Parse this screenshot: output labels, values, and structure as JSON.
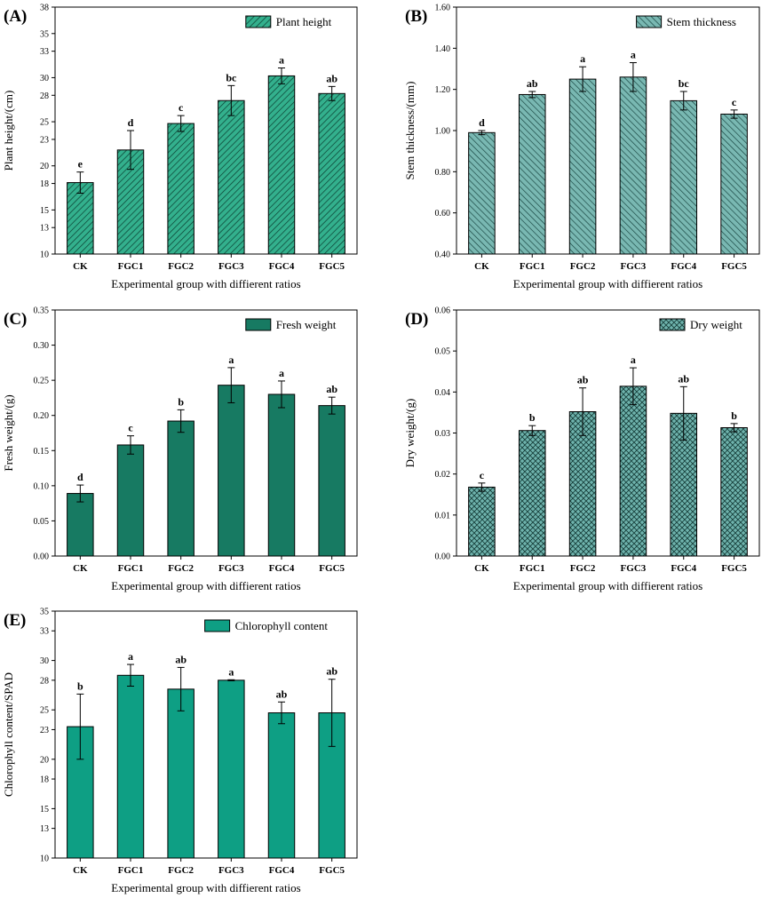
{
  "chart_data": [
    {
      "panel": "(A)",
      "type": "bar",
      "categories": [
        "CK",
        "FGC1",
        "FGC2",
        "FGC3",
        "FGC4",
        "FGC5"
      ],
      "values": [
        18.1,
        21.8,
        24.8,
        27.4,
        30.2,
        28.2
      ],
      "errors": [
        1.2,
        2.2,
        0.9,
        1.7,
        0.9,
        0.8
      ],
      "significance": [
        "e",
        "d",
        "c",
        "bc",
        "a",
        "ab"
      ],
      "ylim": [
        10,
        38
      ],
      "yticks": [
        "10",
        "13",
        "15",
        "18",
        "20",
        "23",
        "25",
        "28",
        "30",
        "33",
        "35",
        "38"
      ],
      "ylabel": "Plant height/(cm)",
      "xlabel": "Experimental group with diffierent ratios",
      "legend": "Plant height",
      "legend_position": "top-right",
      "color": "#33b08d",
      "pattern": "diagonal-right"
    },
    {
      "panel": "(B)",
      "type": "bar",
      "categories": [
        "CK",
        "FGC1",
        "FGC2",
        "FGC3",
        "FGC4",
        "FGC5"
      ],
      "values": [
        0.99,
        1.175,
        1.25,
        1.26,
        1.145,
        1.08
      ],
      "errors": [
        0.01,
        0.015,
        0.06,
        0.07,
        0.045,
        0.02
      ],
      "significance": [
        "d",
        "ab",
        "a",
        "a",
        "bc",
        "c"
      ],
      "ylim": [
        0.4,
        1.6
      ],
      "yticks": [
        "0.40",
        "0.60",
        "0.80",
        "1.00",
        "1.20",
        "1.40",
        "1.60"
      ],
      "ylabel": "Stem thickness/(mm)",
      "xlabel": "Experimental group with diffierent ratios",
      "legend": "Stem thickness",
      "legend_position": "top-right",
      "color": "#79b8b2",
      "pattern": "diagonal-left"
    },
    {
      "panel": "(C)",
      "type": "bar",
      "categories": [
        "CK",
        "FGC1",
        "FGC2",
        "FGC3",
        "FGC4",
        "FGC5"
      ],
      "values": [
        0.089,
        0.158,
        0.192,
        0.243,
        0.23,
        0.214
      ],
      "errors": [
        0.012,
        0.013,
        0.016,
        0.025,
        0.019,
        0.012
      ],
      "significance": [
        "d",
        "c",
        "b",
        "a",
        "a",
        "ab"
      ],
      "ylim": [
        0,
        0.35
      ],
      "yticks": [
        "0.00",
        "0.05",
        "0.10",
        "0.15",
        "0.20",
        "0.25",
        "0.30",
        "0.35"
      ],
      "ylabel": "Fresh weight/(g)",
      "xlabel": "Experimental group with diffierent ratios",
      "legend": "Fresh weight",
      "legend_position": "top-right",
      "color": "#177a62",
      "pattern": "solid"
    },
    {
      "panel": "(D)",
      "type": "bar",
      "categories": [
        "CK",
        "FGC1",
        "FGC2",
        "FGC3",
        "FGC4",
        "FGC5"
      ],
      "values": [
        0.0168,
        0.0306,
        0.0352,
        0.0414,
        0.0348,
        0.0313
      ],
      "errors": [
        0.001,
        0.0012,
        0.0058,
        0.0045,
        0.0065,
        0.001
      ],
      "significance": [
        "c",
        "b",
        "ab",
        "a",
        "ab",
        "b"
      ],
      "ylim": [
        0,
        0.06
      ],
      "yticks": [
        "0.00",
        "0.01",
        "0.02",
        "0.03",
        "0.04",
        "0.05",
        "0.06"
      ],
      "ylabel": "Dry weight/(g)",
      "xlabel": "Experimental group with diffierent ratios",
      "legend": "Dry weight",
      "legend_position": "top-right",
      "color": "#6fb3ad",
      "pattern": "crosshatch"
    },
    {
      "panel": "(E)",
      "type": "bar",
      "categories": [
        "CK",
        "FGC1",
        "FGC2",
        "FGC3",
        "FGC4",
        "FGC5"
      ],
      "values": [
        23.3,
        28.5,
        27.1,
        28.0,
        24.7,
        24.7
      ],
      "errors": [
        3.3,
        1.1,
        2.2,
        0.05,
        1.1,
        3.4
      ],
      "significance": [
        "b",
        "a",
        "ab",
        "a",
        "ab",
        "ab"
      ],
      "ylim": [
        10,
        35
      ],
      "yticks": [
        "10",
        "13",
        "15",
        "18",
        "20",
        "23",
        "25",
        "28",
        "30",
        "33",
        "35"
      ],
      "ylabel": "Chlorophyll content/SPAD",
      "xlabel": "Experimental group with diffierent ratios",
      "legend": "Chlorophyll content",
      "legend_position": "top-right",
      "color": "#0e9f84",
      "pattern": "solid"
    }
  ]
}
